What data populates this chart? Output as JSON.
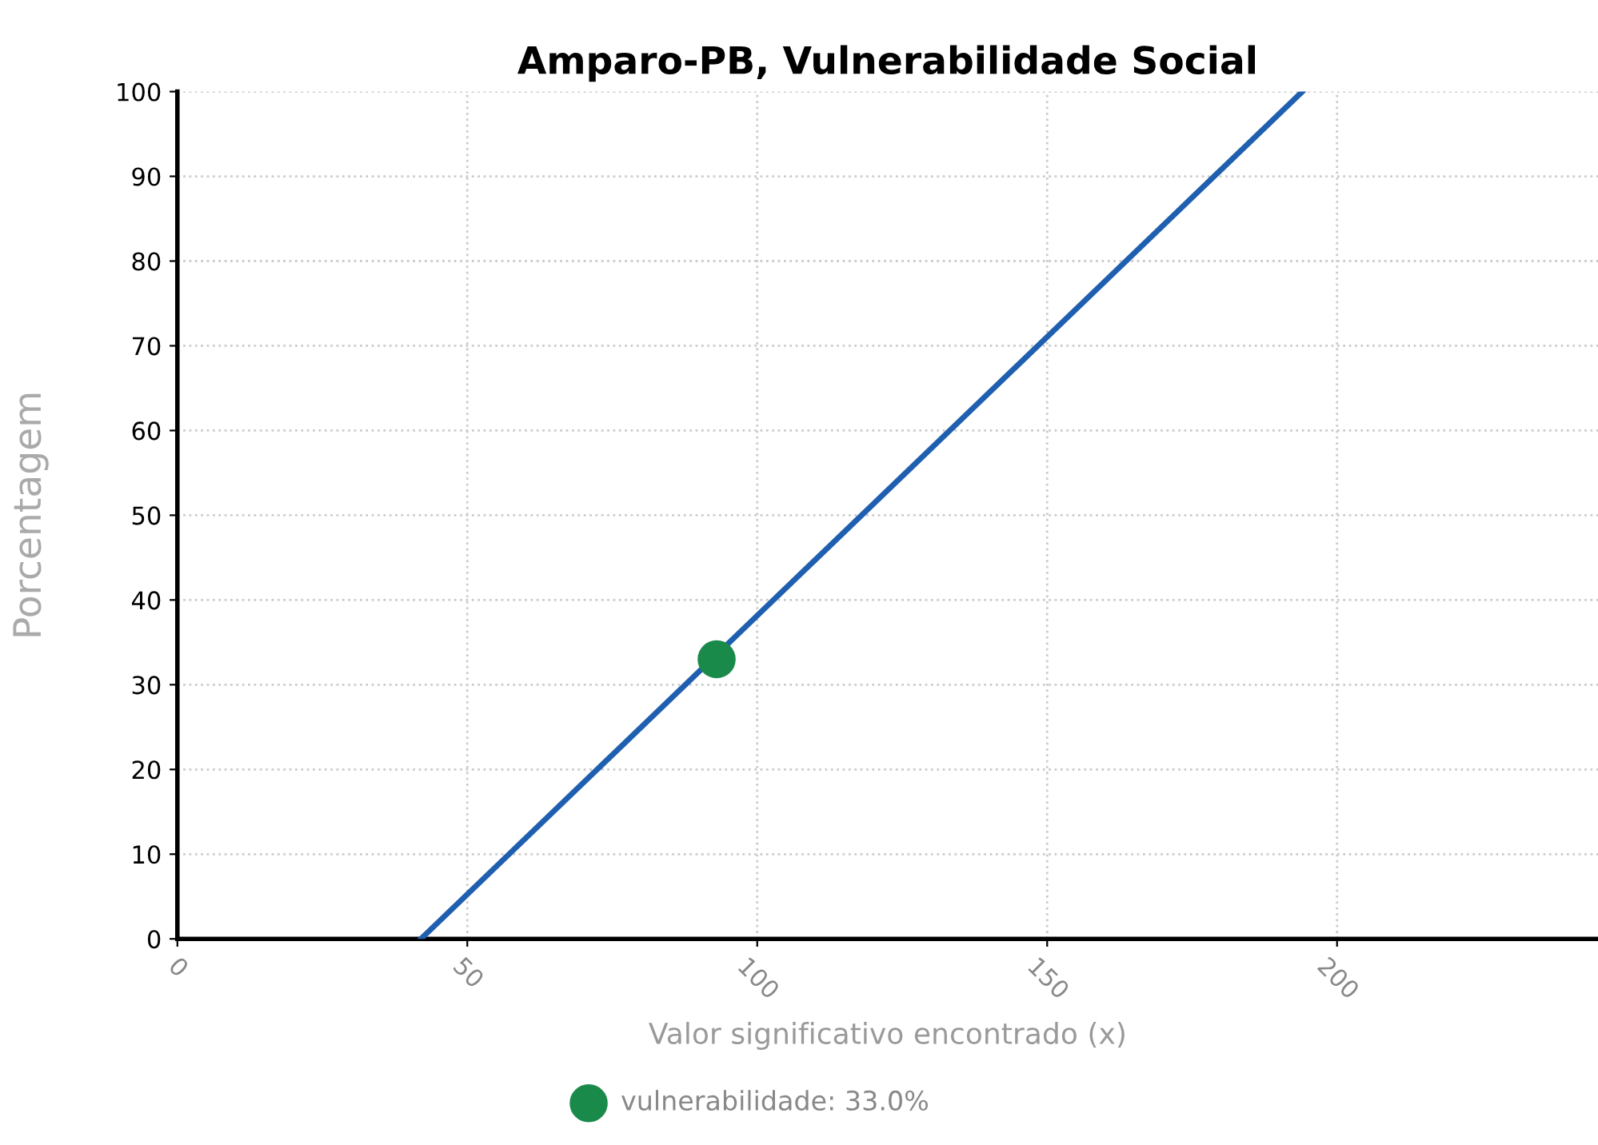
{
  "chart_data": {
    "type": "line",
    "title": "Amparo-PB, Vulnerabilidade Social",
    "xlabel": "Valor significativo encontrado (x)",
    "ylabel": "Porcentagem",
    "series": [
      {
        "type": "line",
        "color": "#1f5fb0",
        "x": [
          42,
          194
        ],
        "values": [
          0,
          100
        ]
      },
      {
        "type": "scatter",
        "name": "vulnerabilidade: 33.0%",
        "color": "#1a8a4a",
        "x": [
          93
        ],
        "values": [
          33
        ]
      }
    ],
    "xlim": [
      0,
      245
    ],
    "xticks": [
      0,
      50,
      100,
      150,
      200
    ],
    "ylim": [
      0,
      100
    ],
    "yticks": [
      0,
      10,
      20,
      30,
      40,
      50,
      60,
      70,
      80,
      90,
      100
    ],
    "grid": true,
    "legend": "bottom"
  }
}
